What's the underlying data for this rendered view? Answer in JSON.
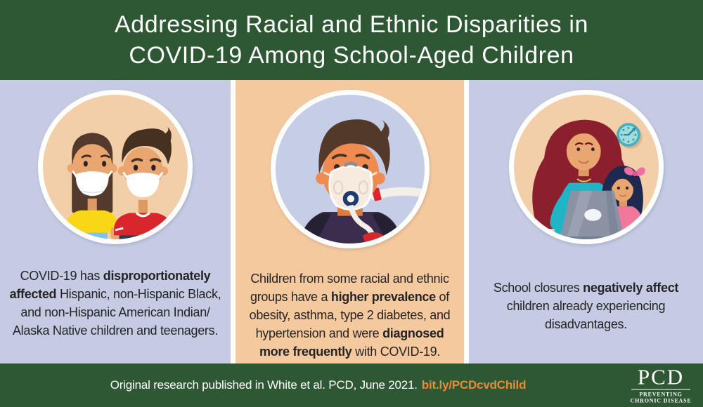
{
  "palette": {
    "header_green": "#2E5733",
    "panel_lavender": "#C4CBE3",
    "panel_peach": "#F4C99E",
    "circle_peach": "#F2CFA9",
    "circle_lavender": "#C6CDE7",
    "link_orange": "#E98B3B",
    "text_dark": "#262326",
    "white": "#FFFFFF"
  },
  "header": {
    "title_line1": "Addressing Racial and Ethnic Disparities in",
    "title_line2": "COVID-19 Among School-Aged Children"
  },
  "panels": [
    {
      "illustration": "two-masked-children",
      "text_segments": [
        {
          "text": "COVID-19 has ",
          "bold": false
        },
        {
          "text": "disproportionately affected",
          "bold": true
        },
        {
          "text": " Hispanic, non-Hispanic Black, and non-Hispanic American Indian/ Alaska Native children and teenagers.",
          "bold": false
        }
      ]
    },
    {
      "illustration": "child-with-oxygen-mask",
      "text_segments": [
        {
          "text": "Children from some racial and ethnic groups have a ",
          "bold": false
        },
        {
          "text": "higher prevalence",
          "bold": true
        },
        {
          "text": " of obesity, asthma, type 2 diabetes, and hypertension and were ",
          "bold": false
        },
        {
          "text": "diagnosed more frequently",
          "bold": true
        },
        {
          "text": " with COVID-19.",
          "bold": false
        }
      ]
    },
    {
      "illustration": "mother-and-child-with-laptop",
      "text_segments": [
        {
          "text": "School closures ",
          "bold": false
        },
        {
          "text": "negatively affect",
          "bold": true
        },
        {
          "text": " children already experiencing disadvantages.",
          "bold": false
        }
      ]
    }
  ],
  "footer": {
    "citation": "Original research published in White et al. PCD, June 2021.",
    "link": "bit.ly/PCDcvdChild",
    "logo": {
      "acronym": "PCD",
      "subtitle_line1": "PREVENTING",
      "subtitle_line2": "CHRONIC DISEASE"
    }
  }
}
